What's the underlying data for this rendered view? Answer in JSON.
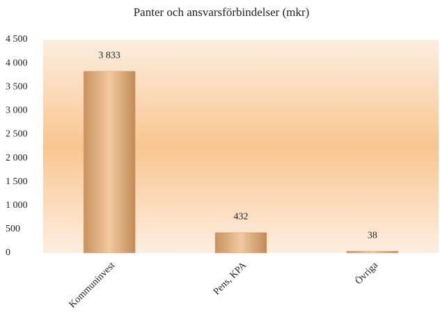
{
  "chart_data": {
    "type": "bar",
    "title": "Panter och ansvarsförbindelser (mkr)",
    "categories": [
      "Kommuninvest",
      "Pens, KPA",
      "Övriga"
    ],
    "values": [
      3833,
      432,
      38
    ],
    "value_labels": [
      "3 833",
      "432",
      "38"
    ],
    "color": "#d9a77a",
    "ylim": [
      0,
      4500
    ],
    "yticks": [
      0,
      500,
      {
        "value": 1000,
        "label": "1 000"
      },
      {
        "value": 1500,
        "label": "1 500"
      },
      {
        "value": 2000,
        "label": "2 000"
      },
      {
        "value": 2500,
        "label": "2 500"
      },
      {
        "value": 3000,
        "label": "3 000"
      },
      {
        "value": 3500,
        "label": "3 500"
      },
      {
        "value": 4000,
        "label": "4 000"
      },
      {
        "value": 4500,
        "label": "4 500"
      }
    ],
    "grid": true
  }
}
